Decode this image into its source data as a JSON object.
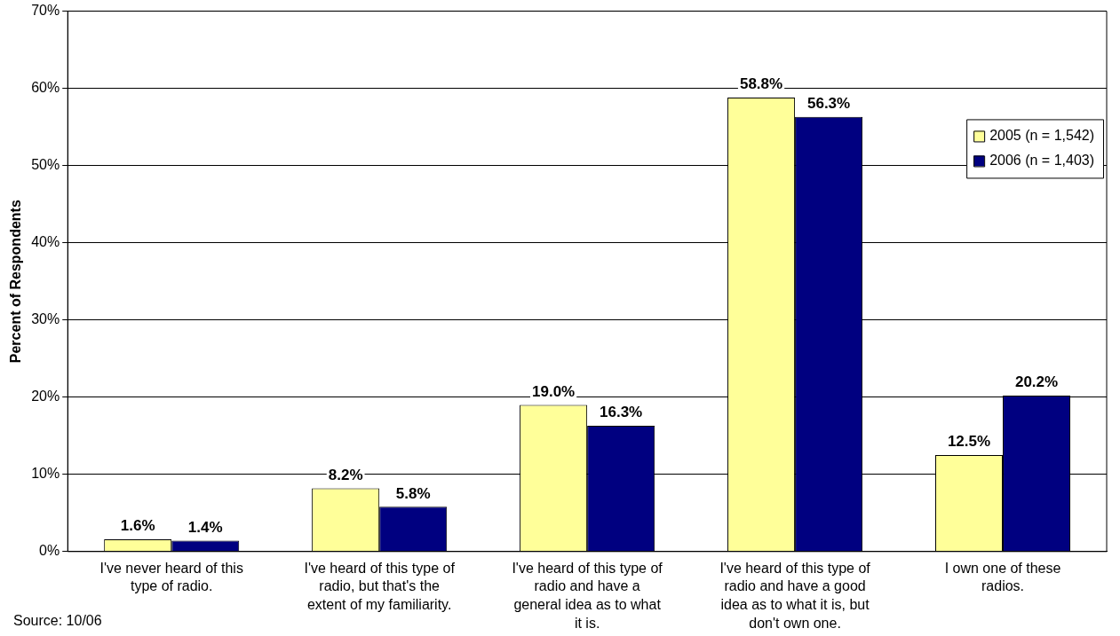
{
  "chart_data": {
    "type": "bar",
    "ylabel": "Percent of Respondents",
    "categories": [
      "I've never heard of this type of radio.",
      "I've heard of this type of radio, but that's the extent of my familiarity.",
      "I've heard of this type of radio and have a general idea as to what it is.",
      "I've heard of this type of radio and have a good idea as to what it is, but don't own one.",
      "I own one of these radios."
    ],
    "series": [
      {
        "name": "2005 (n = 1,542)",
        "color": "#ffff99",
        "values": [
          1.6,
          8.2,
          19.0,
          58.8,
          12.5
        ],
        "value_labels": [
          "1.6%",
          "8.2%",
          "19.0%",
          "58.8%",
          "12.5%"
        ]
      },
      {
        "name": "2006 (n = 1,403)",
        "color": "#000080",
        "values": [
          1.4,
          5.8,
          16.3,
          56.3,
          20.2
        ],
        "value_labels": [
          "1.4%",
          "5.8%",
          "16.3%",
          "56.3%",
          "20.2%"
        ]
      }
    ],
    "ylim": [
      0,
      70
    ],
    "yticks": [
      {
        "value": 0,
        "label": "0%"
      },
      {
        "value": 10,
        "label": "10%"
      },
      {
        "value": 20,
        "label": "20%"
      },
      {
        "value": 30,
        "label": "30%"
      },
      {
        "value": 40,
        "label": "40%"
      },
      {
        "value": 50,
        "label": "50%"
      },
      {
        "value": 60,
        "label": "60%"
      },
      {
        "value": 70,
        "label": "70%"
      }
    ],
    "grid": "y",
    "legend": "top right",
    "annotations": [
      "Source: 10/06"
    ]
  }
}
